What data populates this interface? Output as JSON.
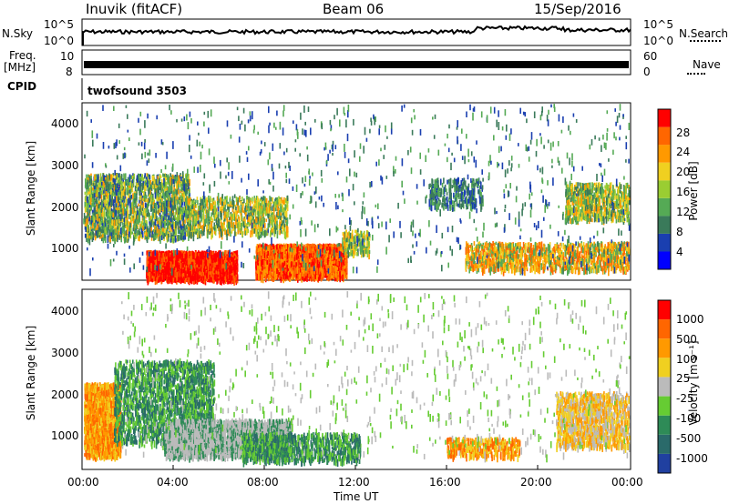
{
  "header": {
    "station": "Inuvik (fitACF)",
    "beam": "Beam 06",
    "date": "15/Sep/2016"
  },
  "panels": {
    "nsky_label": "N.Sky",
    "nsky_ticks": [
      "10^5",
      "10^0"
    ],
    "nsearch_label": "N.Search",
    "nsearch_ticks": [
      "10^5",
      "10^0"
    ],
    "freq_label": "Freq.",
    "freq_unit": "[MHz]",
    "freq_ticks": [
      "10",
      "8"
    ],
    "nave_label": "Nave",
    "nave_ticks": [
      "60",
      "0"
    ],
    "cpid_label": "CPID",
    "cpid_value": "twofsound 3503"
  },
  "chart_data": [
    {
      "type": "heatmap",
      "name": "power",
      "ylabel": "Slant Range [km]",
      "yticks": [
        "4000",
        "3000",
        "2000",
        "1000"
      ],
      "ylim": [
        180,
        4500
      ],
      "colorbar_label": "Power [dB]",
      "colorbar_ticks": [
        "28",
        "24",
        "20",
        "16",
        "12",
        "8",
        "4"
      ],
      "colorbar_colors": [
        "#0000ff",
        "#1a3fb0",
        "#3a7a5a",
        "#55aa55",
        "#9acd32",
        "#f0d020",
        "#ff9900",
        "#ff6600",
        "#ff0000"
      ],
      "ranges": [
        0,
        4,
        8,
        12,
        16,
        20,
        24,
        28,
        32
      ]
    },
    {
      "type": "heatmap",
      "name": "velocity",
      "ylabel": "Slant Range [km]",
      "yticks": [
        "4000",
        "3000",
        "2000",
        "1000"
      ],
      "ylim": [
        180,
        4500
      ],
      "colorbar_label": "Velocity [m s⁻¹]",
      "colorbar_ticks": [
        "1000",
        "500",
        "100",
        "25",
        "-25",
        "-100",
        "-500",
        "-1000"
      ],
      "colorbar_colors": [
        "#2040a0",
        "#2a6a6a",
        "#2e8b57",
        "#66cc33",
        "#bbbbbb",
        "#f0d020",
        "#ff9900",
        "#ff6600",
        "#ff0000"
      ]
    }
  ],
  "xaxis": {
    "label": "Time UT",
    "ticks": [
      "00:00",
      "04:00",
      "08:00",
      "12:00",
      "16:00",
      "20:00",
      "00:00"
    ]
  }
}
